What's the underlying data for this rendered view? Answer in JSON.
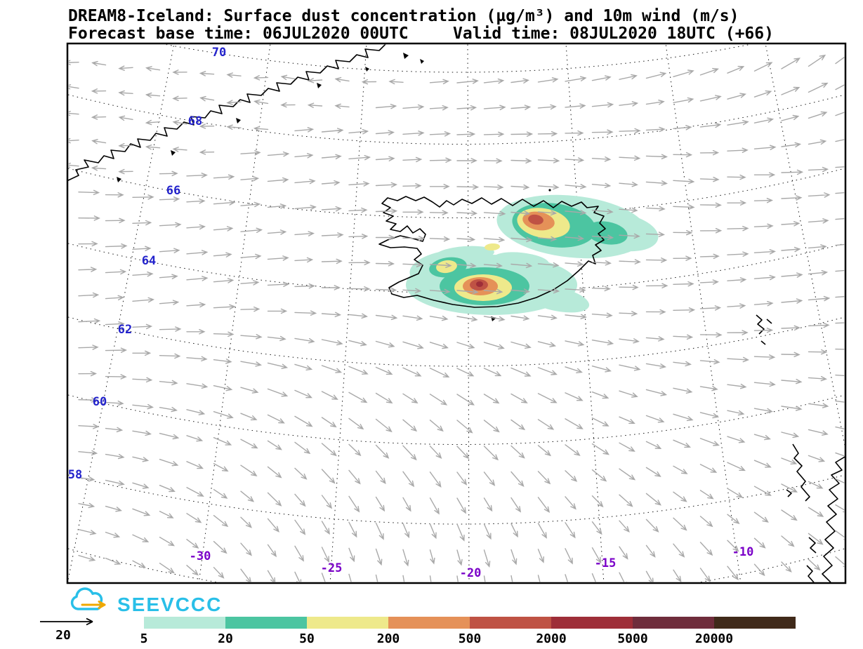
{
  "header": {
    "title": "DREAM8-Iceland: Surface dust concentration (µg/m³) and 10m wind (m/s)",
    "subtitle_left": "Forecast base time: 06JUL2020 00UTC",
    "subtitle_right": "Valid time: 08JUL2020 18UTC (+66)"
  },
  "map": {
    "lat_labels": [
      "70",
      "68",
      "66",
      "64",
      "62",
      "60",
      "58"
    ],
    "lon_labels": [
      "-30",
      "-25",
      "-20",
      "-15",
      "-10"
    ],
    "lat_label_color": "#2323cc",
    "lon_label_color": "#7a00c8"
  },
  "logo": {
    "text": "SEEVCCC",
    "color": "#29bfe8",
    "arrow_color": "#f0a800"
  },
  "legend": {
    "wind_ref_label": "20",
    "values": [
      "5",
      "20",
      "50",
      "200",
      "500",
      "2000",
      "5000",
      "20000"
    ]
  },
  "chart_data": {
    "type": "map",
    "model": "DREAM8-Iceland",
    "variables": [
      "Surface dust concentration (µg/m³)",
      "10m wind (m/s)"
    ],
    "forecast_base_time": "06JUL2020 00UTC",
    "valid_time": "08JUL2020 18UTC",
    "lead_hours": 66,
    "lat_ticks": [
      70,
      68,
      66,
      64,
      62,
      60,
      58
    ],
    "lon_ticks": [
      -30,
      -25,
      -20,
      -15,
      -10
    ],
    "dust_scale_units": "µg/m³",
    "dust_scale_levels": [
      5,
      20,
      50,
      200,
      500,
      2000,
      5000,
      20000
    ],
    "dust_scale_colors": [
      "#b7ead9",
      "#4cc5a1",
      "#eee98b",
      "#e59158",
      "#bf5244",
      "#9e2e38",
      "#6f2d3c",
      "#402a1a"
    ],
    "wind_reference_ms": 20,
    "wind_arrow_color": "#a9a9a9",
    "dust_plumes": [
      {
        "location": "northeast Iceland",
        "peak_level_ugm3": "500-2000"
      },
      {
        "location": "south coast of Iceland",
        "peak_level_ugm3": ">2000"
      }
    ]
  }
}
